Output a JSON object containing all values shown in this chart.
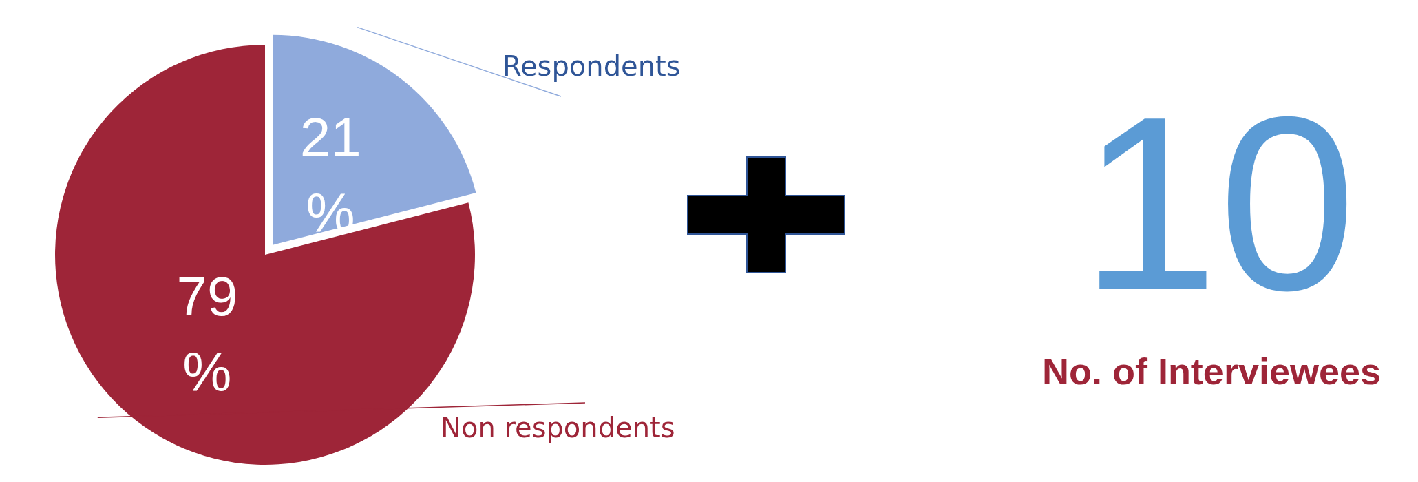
{
  "chart_data": [
    {
      "type": "pie",
      "categories": [
        "Respondents",
        "Non respondents"
      ],
      "values": [
        21,
        79
      ],
      "colors": [
        "#8faadc",
        "#9e2538"
      ],
      "value_labels": [
        "21%",
        "79%"
      ],
      "legend": false
    },
    {
      "type": "other",
      "annotations": [
        "10",
        "No. of Interviewees"
      ]
    }
  ]
}
